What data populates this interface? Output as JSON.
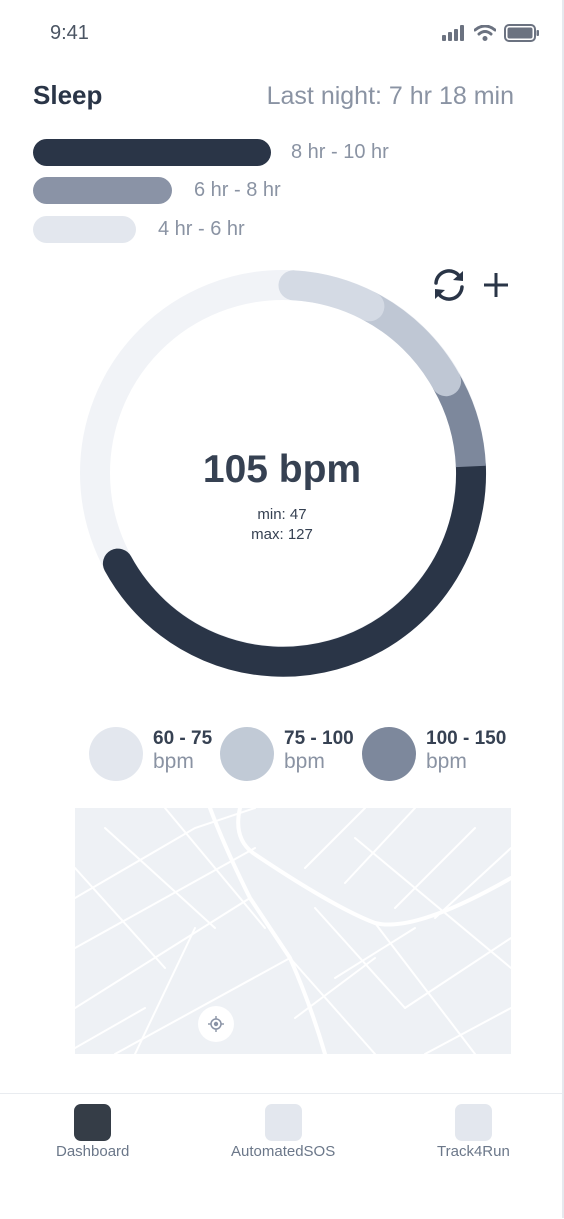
{
  "status_bar": {
    "time": "9:41",
    "icons": [
      "signal-icon",
      "wifi-icon",
      "battery-icon"
    ]
  },
  "header": {
    "title": "Sleep",
    "last_night": "Last night: 7 hr 18 min"
  },
  "sleep_legend": [
    {
      "label": "8 hr - 10 hr",
      "color": "#2a3547"
    },
    {
      "label": "6 hr - 8 hr",
      "color": "#8a93a6"
    },
    {
      "label": "4 hr - 6 hr",
      "color": "#e3e7ee"
    }
  ],
  "heart_rate": {
    "value": "105 bpm",
    "min": "min: 47",
    "max": "max: 127",
    "ring_colors": {
      "track": "#f1f3f7",
      "light": "#d4dae4",
      "mid_light": "#bfc7d4",
      "mid": "#7d889c",
      "dark": "#2a3547"
    }
  },
  "ring_actions": {
    "refresh_icon": "refresh-icon",
    "add_icon": "plus-icon"
  },
  "bpm_legend": [
    {
      "range": "60 - 75",
      "unit": "bpm",
      "color": "#e3e7ee"
    },
    {
      "range": "75 - 100",
      "unit": "bpm",
      "color": "#c1cad6"
    },
    {
      "range": "100 - 150",
      "unit": "bpm",
      "color": "#7d889c"
    }
  ],
  "map": {
    "locate_icon": "locate-icon",
    "background": "#eef1f5"
  },
  "nav": {
    "items": [
      {
        "label": "Dashboard",
        "active": true,
        "color": "#353d47"
      },
      {
        "label": "AutomatedSOS",
        "active": false,
        "color": "#e3e7ee"
      },
      {
        "label": "Track4Run",
        "active": false,
        "color": "#e3e7ee"
      }
    ]
  }
}
